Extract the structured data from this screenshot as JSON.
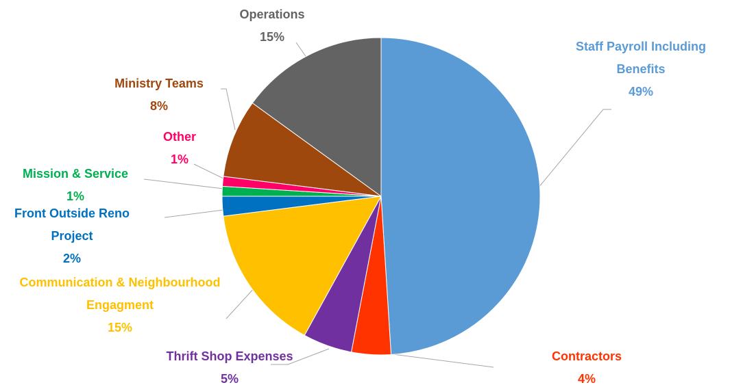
{
  "chart_data": {
    "type": "pie",
    "categories": [
      "Staff Payroll Including Benefits",
      "Contractors",
      "Thrift Shop Expenses",
      "Communication & Neighbourhood Engagment",
      "Front Outside Reno Project",
      "Mission & Service",
      "Other",
      "Ministry Teams",
      "Operations"
    ],
    "values": [
      49,
      4,
      5,
      15,
      2,
      1,
      1,
      8,
      15
    ],
    "value_labels": [
      "49%",
      "4%",
      "5%",
      "15%",
      "2%",
      "1%",
      "1%",
      "8%",
      "15%"
    ],
    "colors": [
      "#5b9bd5",
      "#ff3300",
      "#7030a0",
      "#ffc000",
      "#0070c0",
      "#00b050",
      "#ff0066",
      "#9e480e",
      "#636363"
    ]
  }
}
